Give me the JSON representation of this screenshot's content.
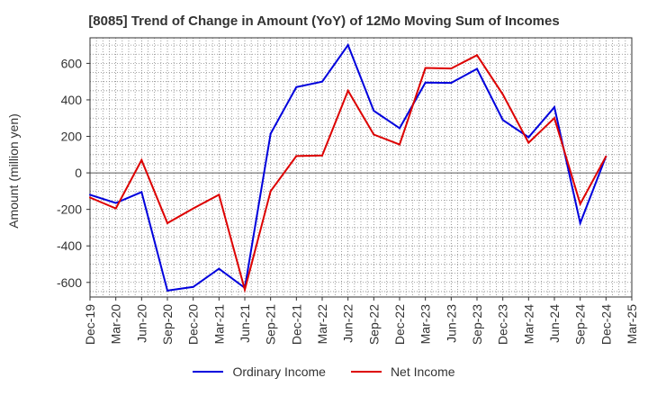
{
  "chart_data": {
    "type": "line",
    "title": "[8085]  Trend of Change in Amount (YoY) of 12Mo Moving Sum of Incomes",
    "ylabel": "Amount (million yen)",
    "xlabel": "",
    "ylim": [
      -680,
      740
    ],
    "yticks": [
      -600,
      -400,
      -200,
      0,
      200,
      400,
      600
    ],
    "categories": [
      "Dec-19",
      "Mar-20",
      "Jun-20",
      "Sep-20",
      "Dec-20",
      "Mar-21",
      "Jun-21",
      "Sep-21",
      "Dec-21",
      "Mar-22",
      "Jun-22",
      "Sep-22",
      "Dec-22",
      "Mar-23",
      "Jun-23",
      "Sep-23",
      "Dec-23",
      "Mar-24",
      "Jun-24",
      "Sep-24",
      "Dec-24",
      "Mar-25"
    ],
    "grid": true,
    "legend_position": "bottom",
    "series": [
      {
        "name": "Ordinary Income",
        "color": "#0000dd",
        "values": [
          -120,
          -165,
          -105,
          -645,
          -625,
          -525,
          -630,
          215,
          470,
          500,
          700,
          340,
          245,
          495,
          493,
          570,
          290,
          195,
          360,
          -275,
          90,
          null
        ]
      },
      {
        "name": "Net Income",
        "color": "#dd0000",
        "values": [
          -135,
          -195,
          70,
          -275,
          -195,
          -120,
          -640,
          -100,
          92,
          95,
          450,
          210,
          155,
          575,
          572,
          645,
          430,
          165,
          300,
          -170,
          90,
          null
        ]
      }
    ]
  }
}
